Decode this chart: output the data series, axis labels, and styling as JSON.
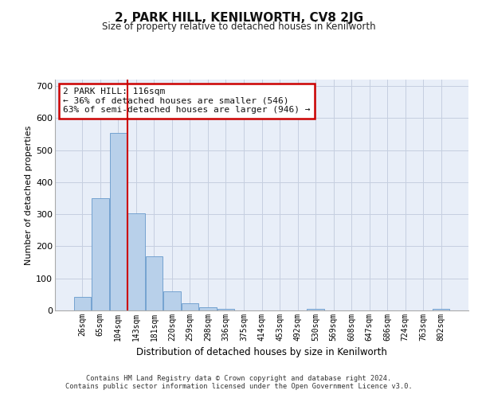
{
  "title": "2, PARK HILL, KENILWORTH, CV8 2JG",
  "subtitle": "Size of property relative to detached houses in Kenilworth",
  "xlabel": "Distribution of detached houses by size in Kenilworth",
  "ylabel": "Number of detached properties",
  "bar_labels": [
    "26sqm",
    "65sqm",
    "104sqm",
    "143sqm",
    "181sqm",
    "220sqm",
    "259sqm",
    "298sqm",
    "336sqm",
    "375sqm",
    "414sqm",
    "453sqm",
    "492sqm",
    "530sqm",
    "569sqm",
    "608sqm",
    "647sqm",
    "686sqm",
    "724sqm",
    "763sqm",
    "802sqm"
  ],
  "bar_values": [
    42,
    350,
    553,
    303,
    170,
    60,
    22,
    10,
    5,
    0,
    0,
    0,
    0,
    6,
    0,
    0,
    0,
    0,
    0,
    0,
    5
  ],
  "bar_color": "#b8d0ea",
  "bar_edge_color": "#6699cc",
  "background_color": "#e8eef8",
  "grid_color": "#c5cfe0",
  "redline_x": 2.5,
  "annotation_text": "2 PARK HILL: 116sqm\n← 36% of detached houses are smaller (546)\n63% of semi-detached houses are larger (946) →",
  "annotation_box_color": "#ffffff",
  "annotation_box_edge": "#cc0000",
  "ylim": [
    0,
    720
  ],
  "yticks": [
    0,
    100,
    200,
    300,
    400,
    500,
    600,
    700
  ],
  "footer1": "Contains HM Land Registry data © Crown copyright and database right 2024.",
  "footer2": "Contains public sector information licensed under the Open Government Licence v3.0."
}
